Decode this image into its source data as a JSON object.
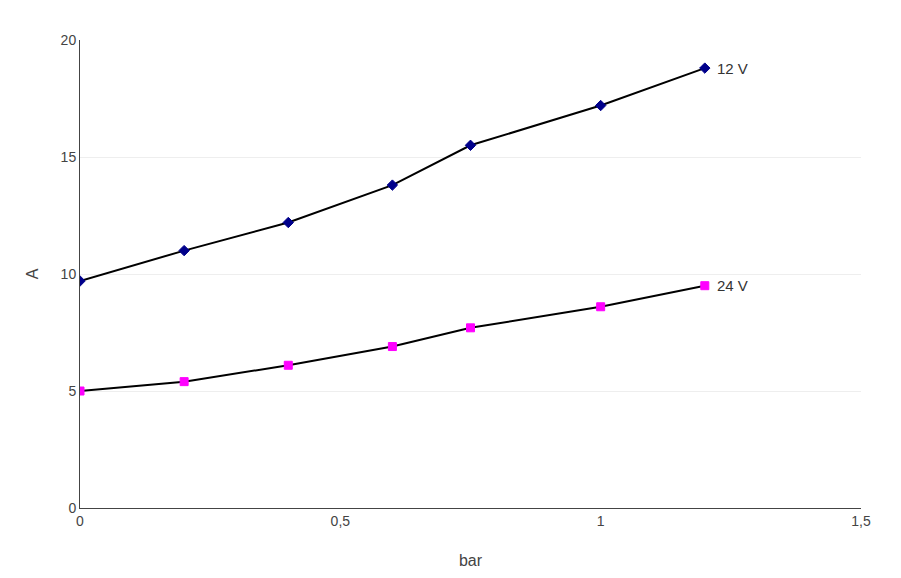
{
  "chart_data": {
    "type": "line",
    "x": [
      0,
      0.2,
      0.4,
      0.6,
      0.75,
      1.0,
      1.2
    ],
    "series": [
      {
        "name": "12 V",
        "color": "#00008B",
        "marker": "diamond",
        "values": [
          9.7,
          11.0,
          12.2,
          13.8,
          15.5,
          17.2,
          18.8
        ]
      },
      {
        "name": "24 V",
        "color": "#FF00FF",
        "marker": "square",
        "values": [
          5.0,
          5.4,
          6.1,
          6.9,
          7.7,
          8.6,
          9.5
        ]
      }
    ],
    "color": "#000000",
    "xlabel": "bar",
    "ylabel": "A",
    "xlim": [
      0,
      1.5
    ],
    "ylim": [
      0,
      20
    ],
    "xticks": [
      0,
      {
        "value": 0.5,
        "label": "0,5"
      },
      1,
      {
        "value": 1.5,
        "label": "1,5"
      }
    ],
    "yticks": [
      0,
      5,
      10,
      15,
      20
    ],
    "grid": "y"
  }
}
